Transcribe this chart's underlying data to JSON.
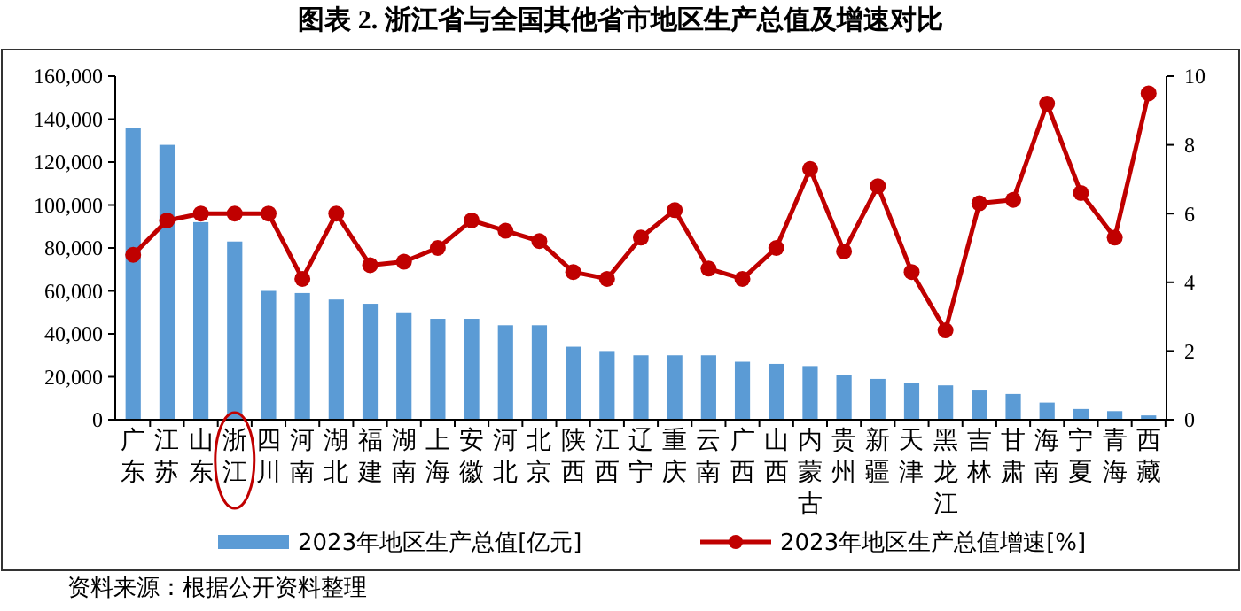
{
  "chart_data": {
    "type": "bar",
    "title": "图表 2. 浙江省与全国其他省市地区生产总值及增速对比",
    "categories": [
      "广东",
      "江苏",
      "山东",
      "浙江",
      "四川",
      "河南",
      "湖北",
      "福建",
      "湖南",
      "上海",
      "安徽",
      "河北",
      "北京",
      "陕西",
      "江西",
      "辽宁",
      "重庆",
      "云南",
      "广西",
      "山西",
      "内蒙古",
      "贵州",
      "新疆",
      "天津",
      "黑龙江",
      "吉林",
      "甘肃",
      "海南",
      "宁夏",
      "青海",
      "西藏"
    ],
    "series": [
      {
        "name": "2023年地区生产总值[亿元]",
        "color": "#5b9bd5",
        "values": [
          136000,
          128000,
          92000,
          83000,
          60000,
          59000,
          56000,
          54000,
          50000,
          47000,
          47000,
          44000,
          44000,
          34000,
          32000,
          30000,
          30000,
          30000,
          27000,
          26000,
          25000,
          21000,
          19000,
          17000,
          16000,
          14000,
          12000,
          8000,
          5000,
          4000,
          2000
        ]
      },
      {
        "name": "2023年地区生产总值增速[%]",
        "type": "line",
        "axis": "y2",
        "color": "#c00000",
        "marker": "circle",
        "values": [
          4.8,
          5.8,
          6.0,
          6.0,
          6.0,
          4.1,
          6.0,
          4.5,
          4.6,
          5.0,
          5.8,
          5.5,
          5.2,
          4.3,
          4.1,
          5.3,
          6.1,
          4.4,
          4.1,
          5.0,
          7.3,
          4.9,
          6.8,
          4.3,
          2.6,
          6.3,
          6.4,
          9.2,
          6.6,
          5.3,
          9.5
        ]
      }
    ],
    "ylim": [
      0,
      160000
    ],
    "yticks": [
      {
        "value": 0,
        "label": "0"
      },
      {
        "value": 20000,
        "label": "20,000"
      },
      {
        "value": 40000,
        "label": "40,000"
      },
      {
        "value": 60000,
        "label": "60,000"
      },
      {
        "value": 80000,
        "label": "80,000"
      },
      {
        "value": 100000,
        "label": "100,000"
      },
      {
        "value": 120000,
        "label": "120,000"
      },
      {
        "value": 140000,
        "label": "140,000"
      },
      {
        "value": 160000,
        "label": "160,000"
      }
    ],
    "y2lim": [
      0,
      10
    ],
    "y2ticks": [
      0,
      2,
      4,
      6,
      8,
      10
    ],
    "grid": false,
    "legend": "bottom",
    "annotations": [
      "资料来源：根据公开资料整理"
    ]
  }
}
